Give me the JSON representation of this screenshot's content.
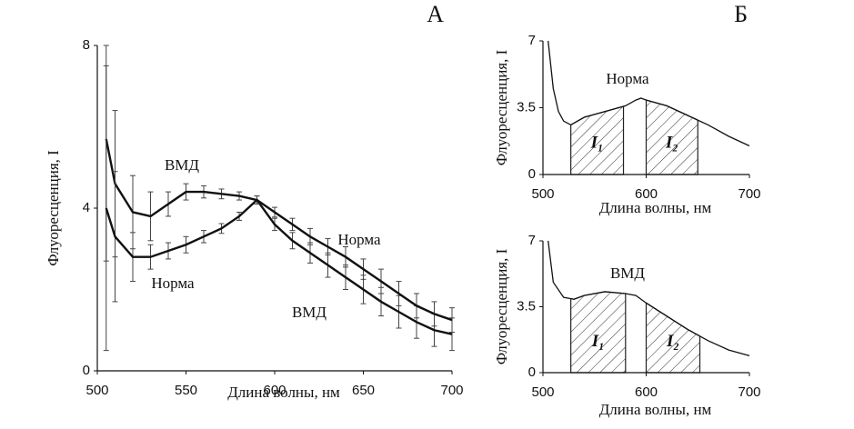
{
  "chart_data": [
    {
      "type": "line",
      "panel": "А",
      "xlabel": "Длина волны, нм",
      "ylabel": "Флуоресценция, I",
      "x": [
        505,
        510,
        520,
        530,
        540,
        550,
        560,
        570,
        580,
        590,
        600,
        610,
        620,
        630,
        640,
        650,
        660,
        670,
        680,
        690,
        700
      ],
      "series": [
        {
          "name": "ВМД",
          "color": "#111111",
          "values": [
            5.7,
            4.6,
            3.9,
            3.8,
            4.1,
            4.4,
            4.4,
            4.35,
            4.3,
            4.2,
            3.6,
            3.2,
            2.9,
            2.6,
            2.3,
            2.0,
            1.7,
            1.45,
            1.2,
            1.0,
            0.9
          ],
          "errors": [
            3.0,
            1.8,
            0.9,
            0.6,
            0.3,
            0.2,
            0.15,
            0.12,
            0.1,
            0.1,
            0.15,
            0.2,
            0.25,
            0.3,
            0.3,
            0.35,
            0.35,
            0.4,
            0.4,
            0.4,
            0.4
          ]
        },
        {
          "name": "Норма",
          "color": "#111111",
          "values": [
            4.0,
            3.3,
            2.8,
            2.8,
            2.95,
            3.1,
            3.3,
            3.5,
            3.8,
            4.2,
            3.9,
            3.6,
            3.3,
            3.05,
            2.8,
            2.5,
            2.2,
            1.9,
            1.6,
            1.4,
            1.25
          ],
          "errors": [
            3.5,
            1.6,
            0.6,
            0.3,
            0.2,
            0.2,
            0.15,
            0.12,
            0.1,
            0.1,
            0.12,
            0.15,
            0.2,
            0.2,
            0.25,
            0.25,
            0.3,
            0.3,
            0.3,
            0.3,
            0.3
          ]
        }
      ],
      "xlim": [
        500,
        700
      ],
      "ylim": [
        0,
        8
      ],
      "xticks": [
        500,
        550,
        600,
        650,
        700
      ],
      "yticks": [
        0,
        4,
        8
      ]
    },
    {
      "type": "line",
      "panel": "Б",
      "xlabel": "Длина волны, нм",
      "ylabel": "Флуоресценция, I",
      "x": [
        505,
        510,
        515,
        520,
        527,
        540,
        560,
        580,
        590,
        595,
        600,
        620,
        640,
        660,
        680,
        700
      ],
      "series": [
        {
          "name": "Норма",
          "color": "#111111",
          "values": [
            7.0,
            4.5,
            3.3,
            2.8,
            2.6,
            3.0,
            3.3,
            3.6,
            3.9,
            4.0,
            3.9,
            3.6,
            3.1,
            2.6,
            2.0,
            1.5
          ]
        }
      ],
      "regions": [
        {
          "label": "I₁",
          "from": 527,
          "to": 578
        },
        {
          "label": "I₂",
          "from": 600,
          "to": 650
        }
      ],
      "xlim": [
        500,
        700
      ],
      "ylim": [
        0,
        7
      ],
      "xticks": [
        500,
        600,
        700
      ],
      "yticks": [
        0,
        3.5,
        7
      ]
    },
    {
      "type": "line",
      "xlabel": "Длина волны, нм",
      "ylabel": "Флуоресценция, I",
      "x": [
        505,
        510,
        520,
        530,
        540,
        560,
        580,
        590,
        600,
        620,
        640,
        660,
        680,
        700
      ],
      "series": [
        {
          "name": "ВМД",
          "color": "#111111",
          "values": [
            7.0,
            4.8,
            4.0,
            3.9,
            4.1,
            4.3,
            4.2,
            4.1,
            3.7,
            3.0,
            2.3,
            1.7,
            1.2,
            0.9
          ]
        }
      ],
      "regions": [
        {
          "label": "I₁",
          "from": 527,
          "to": 580
        },
        {
          "label": "I₂",
          "from": 600,
          "to": 652
        }
      ],
      "xlim": [
        500,
        700
      ],
      "ylim": [
        0,
        7
      ],
      "xticks": [
        500,
        600,
        700
      ],
      "yticks": [
        0,
        3.5,
        7
      ]
    }
  ]
}
